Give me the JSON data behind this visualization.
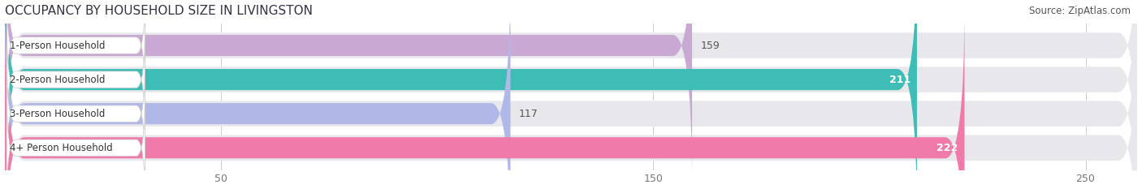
{
  "title": "OCCUPANCY BY HOUSEHOLD SIZE IN LIVINGSTON",
  "source": "Source: ZipAtlas.com",
  "categories": [
    "1-Person Household",
    "2-Person Household",
    "3-Person Household",
    "4+ Person Household"
  ],
  "values": [
    159,
    211,
    117,
    222
  ],
  "bar_colors": [
    "#c9a8d4",
    "#3dbdb6",
    "#b0b8e8",
    "#f07aaa"
  ],
  "label_colors": [
    "#444444",
    "#ffffff",
    "#444444",
    "#ffffff"
  ],
  "value_outside_color": "#555555",
  "xlim": [
    0,
    262
  ],
  "xticks": [
    50,
    150,
    250
  ],
  "background_color": "#ffffff",
  "bar_bg_color": "#e8e8ec",
  "title_fontsize": 11,
  "source_fontsize": 8.5,
  "label_fontsize": 8.5,
  "value_fontsize": 9
}
